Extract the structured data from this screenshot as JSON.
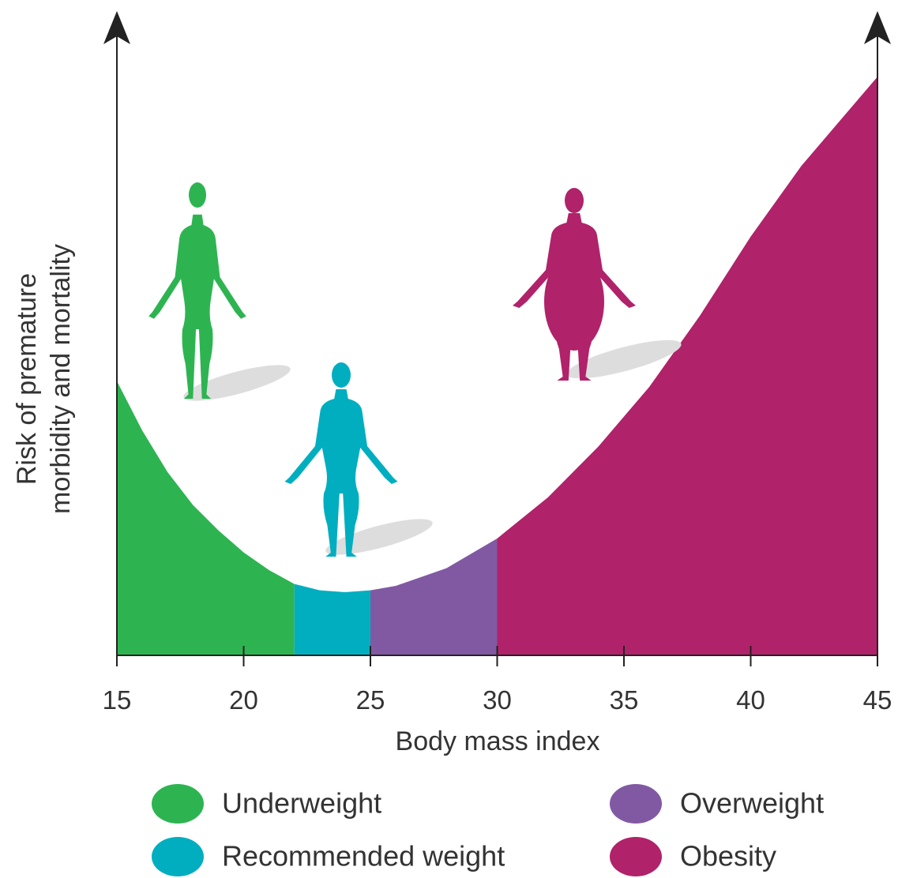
{
  "chart_data": {
    "type": "area",
    "x_label": "Body mass index",
    "y_label": [
      "Risk of premature",
      "morbidity and mortality"
    ],
    "x": [
      15,
      16,
      17,
      18,
      19,
      20,
      21,
      22,
      23,
      24,
      25,
      26,
      28,
      30,
      32,
      34,
      36,
      38,
      40,
      42,
      45
    ],
    "values": [
      43.4,
      35.6,
      29,
      23.8,
      19.8,
      16.3,
      13.5,
      11.3,
      10.3,
      10,
      10.3,
      11,
      13.8,
      18.5,
      25,
      33.1,
      42.5,
      53.8,
      66.3,
      77.5,
      91.6
    ],
    "bands": [
      {
        "name": "Underweight",
        "color": "#2db451",
        "from": 15,
        "to": 22
      },
      {
        "name": "Recommended weight",
        "color": "#00aec0",
        "from": 22,
        "to": 25
      },
      {
        "name": "Overweight",
        "color": "#8159a3",
        "from": 25,
        "to": 30
      },
      {
        "name": "Obesity",
        "color": "#b0226a",
        "from": 30,
        "to": 45
      }
    ],
    "xlim": [
      15,
      45
    ],
    "xticks": [
      15,
      20,
      25,
      30,
      35,
      40,
      45
    ],
    "ylim": [
      0,
      100
    ]
  }
}
